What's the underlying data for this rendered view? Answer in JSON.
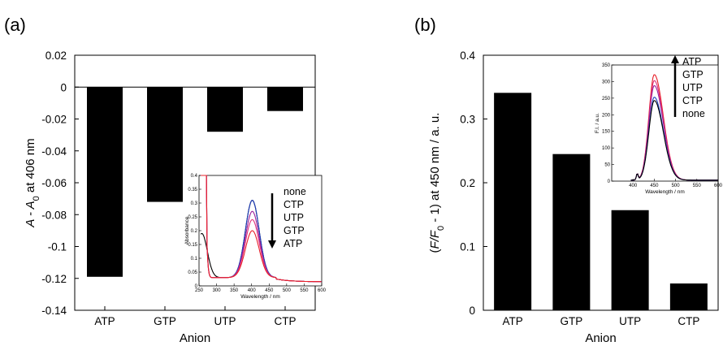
{
  "chart_data": [
    {
      "panel_label": "(a)",
      "type": "bar",
      "categories": [
        "ATP",
        "GTP",
        "UTP",
        "CTP"
      ],
      "values": [
        -0.119,
        -0.072,
        -0.028,
        -0.015
      ],
      "xlabel": "Anion",
      "ylabel": {
        "main": "A - A",
        "sub": "0",
        "tail": " at 406 nm"
      },
      "ylim": [
        -0.14,
        0.02
      ],
      "yticks": [
        "0.02",
        "0",
        "-0.02",
        "-0.04",
        "-0.06",
        "-0.08",
        "-0.1",
        "-0.12",
        "-0.14"
      ],
      "ytick_values": [
        0.02,
        0,
        -0.02,
        -0.04,
        -0.06,
        -0.08,
        -0.1,
        -0.12,
        -0.14
      ],
      "bar_color": "#000000",
      "grid": false,
      "inset": {
        "type": "line",
        "xlabel": "Wavelength / nm",
        "ylabel": "Absorbance",
        "xlim": [
          250,
          600
        ],
        "ylim": [
          0,
          0.4
        ],
        "xticks": [
          "250",
          "300",
          "350",
          "400",
          "450",
          "500",
          "550",
          "600"
        ],
        "xtick_values": [
          250,
          300,
          350,
          400,
          450,
          500,
          550,
          600
        ],
        "yticks": [
          "0",
          "0.05",
          "0.1",
          "0.15",
          "0.2",
          "0.25",
          "0.3",
          "0.35",
          "0.4"
        ],
        "ytick_values": [
          0,
          0.05,
          0.1,
          0.15,
          0.2,
          0.25,
          0.3,
          0.35,
          0.4
        ],
        "legend": [
          "none",
          "CTP",
          "UTP",
          "GTP",
          "ATP"
        ],
        "legend_arrow": "down",
        "series": [
          {
            "color": "#000000",
            "peak": 0.31
          },
          {
            "color": "#1f3fbf",
            "peak": 0.31
          },
          {
            "color": "#9b1f9b",
            "peak": 0.27
          },
          {
            "color": "#e0307a",
            "peak": 0.24
          },
          {
            "color": "#e8202a",
            "peak": 0.2
          }
        ]
      }
    },
    {
      "panel_label": "(b)",
      "type": "bar",
      "categories": [
        "ATP",
        "GTP",
        "UTP",
        "CTP"
      ],
      "values": [
        0.341,
        0.245,
        0.157,
        0.042
      ],
      "xlabel": "Anion",
      "ylabel": {
        "pre": "(",
        "italic": "F/F",
        "sub": "0",
        "tail": " - 1) at 450 nm / a. u."
      },
      "ylim": [
        0,
        0.4
      ],
      "yticks": [
        "0",
        "0.1",
        "0.2",
        "0.3",
        "0.4"
      ],
      "ytick_values": [
        0,
        0.1,
        0.2,
        0.3,
        0.4
      ],
      "bar_color": "#000000",
      "grid": false,
      "inset": {
        "type": "line",
        "xlabel": "Wavelength / nm",
        "ylabel": "F.I. / a.u.",
        "xlim": [
          350,
          600
        ],
        "ylim": [
          0,
          350
        ],
        "xticks": [
          "400",
          "450",
          "500",
          "550",
          "600"
        ],
        "xtick_values": [
          400,
          450,
          500,
          550,
          600
        ],
        "yticks": [
          "0",
          "50",
          "100",
          "150",
          "200",
          "250",
          "300",
          "350"
        ],
        "ytick_values": [
          0,
          50,
          100,
          150,
          200,
          250,
          300,
          350
        ],
        "legend": [
          "ATP",
          "GTP",
          "UTP",
          "CTP",
          "none"
        ],
        "legend_arrow": "up",
        "series": [
          {
            "color": "#e8202a",
            "peak": 318
          },
          {
            "color": "#e0307a",
            "peak": 300
          },
          {
            "color": "#9b1f9b",
            "peak": 285
          },
          {
            "color": "#1f3fbf",
            "peak": 250
          },
          {
            "color": "#000000",
            "peak": 240
          }
        ]
      }
    }
  ]
}
